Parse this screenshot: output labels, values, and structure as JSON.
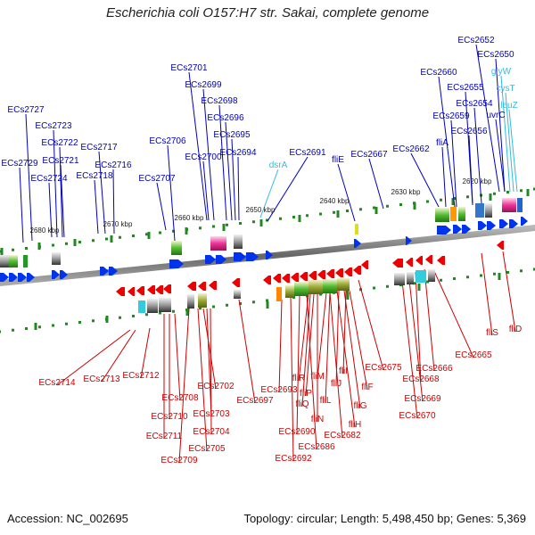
{
  "title": "Escherichia coli O157:H7 str. Sakai, complete genome",
  "footer": {
    "accession": "Accession: NC_002695",
    "topology": "Topology: circular; Length: 5,498,450 bp; Genes: 5,369"
  },
  "colors": {
    "forward_gene": "#0033ee",
    "reverse_gene": "#ee0000",
    "forward_label": "#0000bb",
    "reverse_label": "#cc0000",
    "rna_label": "#33bbdd",
    "tick": "#228822",
    "backbone": "#888888"
  },
  "kbp_ticks": [
    "2620 kbp",
    "2630 kbp",
    "2640 kbp",
    "2650 kbp",
    "2660 kbp",
    "2670 kbp",
    "2680 kbp"
  ],
  "forward_labels": [
    "ECs2652",
    "ECs2650",
    "glyW",
    "cysT",
    "leuZ",
    "ECs2660",
    "ECs2655",
    "ECs2654",
    "uvrC",
    "ECs2659",
    "fliA",
    "ECs2656",
    "ECs2662",
    "ECs2667",
    "fliE",
    "ECs2691",
    "dsrA",
    "ECs2694",
    "ECs2695",
    "ECs2696",
    "ECs2698",
    "ECs2699",
    "ECs2701",
    "ECs2700",
    "ECs2706",
    "ECs2707",
    "ECs2716",
    "ECs2717",
    "ECs2718",
    "ECs2721",
    "ECs2722",
    "ECs2723",
    "ECs2724",
    "ECs2727",
    "ECs2729"
  ],
  "reverse_labels": [
    "fliD",
    "fliS",
    "ECs2665",
    "ECs2666",
    "ECs2668",
    "ECs2669",
    "ECs2670",
    "ECs2675",
    "fliI",
    "fliJ",
    "fliF",
    "fliG",
    "fliH",
    "fliM",
    "fliL",
    "fliR",
    "fliP",
    "fliQ",
    "fliN",
    "ECs2682",
    "ECs2686",
    "ECs2690",
    "ECs2692",
    "ECs2693",
    "ECs2697",
    "ECs2702",
    "ECs2703",
    "ECs2704",
    "ECs2705",
    "ECs2709",
    "ECs2708",
    "ECs2710",
    "ECs2711",
    "ECs2712",
    "ECs2713",
    "ECs2714"
  ]
}
